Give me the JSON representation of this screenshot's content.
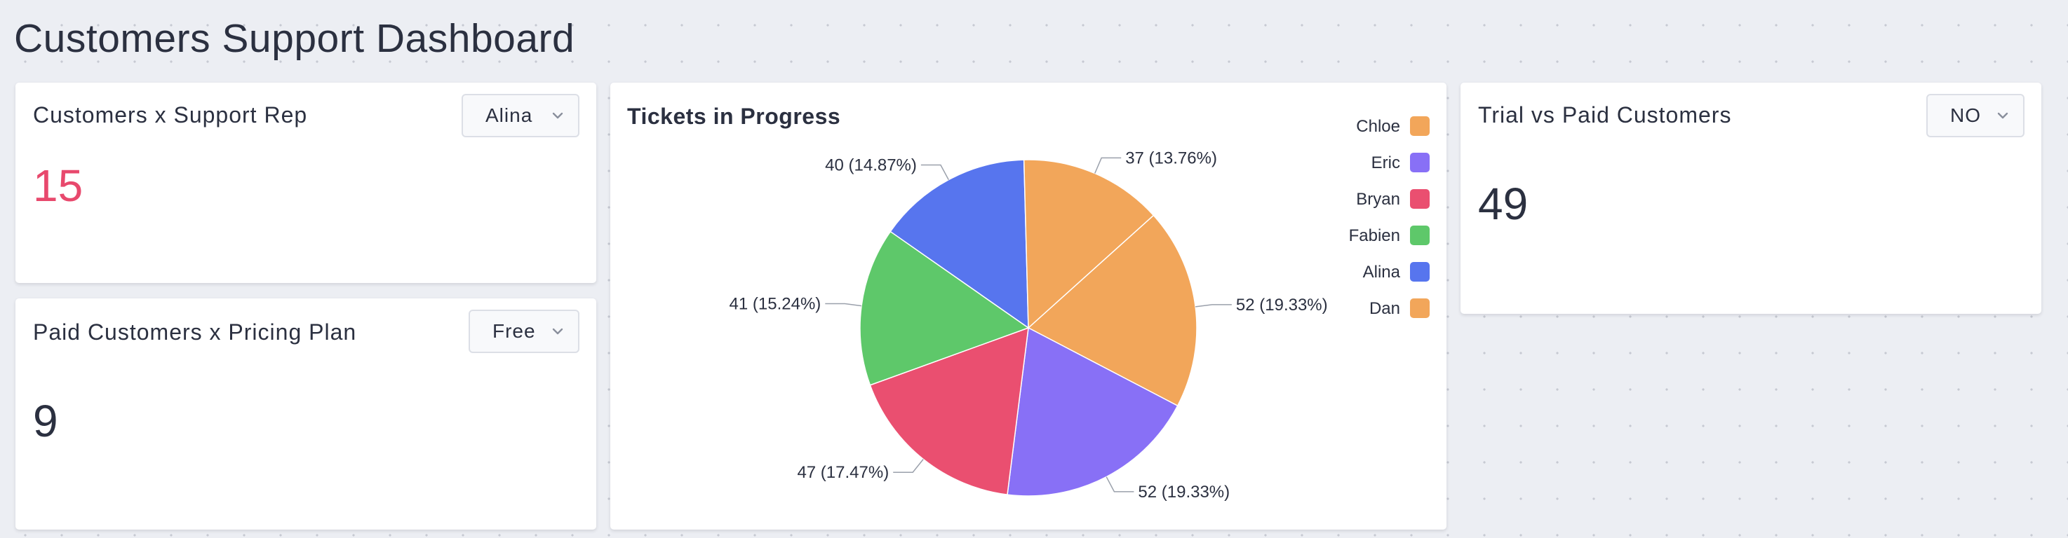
{
  "page": {
    "title": "Customers Support Dashboard"
  },
  "cards": {
    "rep": {
      "title": "Customers x Support Rep",
      "filter": "Alina",
      "value": "15"
    },
    "plan": {
      "title": "Paid Customers x Pricing Plan",
      "filter": "Free",
      "value": "9"
    },
    "trial": {
      "title": "Trial vs Paid Customers",
      "filter": "NO",
      "value": "49"
    }
  },
  "colors": {
    "metric_accent": "#e8496d"
  },
  "chart_data": {
    "type": "pie",
    "title": "Tickets in Progress",
    "legend_position": "top-right",
    "slices": [
      {
        "name": "Chloe",
        "value": 52,
        "label": "52 (19.33%)",
        "color": "#f2a65a"
      },
      {
        "name": "Eric",
        "value": 52,
        "label": "52 (19.33%)",
        "color": "#8870f6"
      },
      {
        "name": "Bryan",
        "value": 47,
        "label": "47 (17.47%)",
        "color": "#ea4f70"
      },
      {
        "name": "Fabien",
        "value": 41,
        "label": "41 (15.24%)",
        "color": "#5ec86a"
      },
      {
        "name": "Alina",
        "value": 40,
        "label": "40 (14.87%)",
        "color": "#5775ee"
      },
      {
        "name": "Dan",
        "value": 37,
        "label": "37 (13.76%)",
        "color": "#f2a65a"
      }
    ]
  }
}
